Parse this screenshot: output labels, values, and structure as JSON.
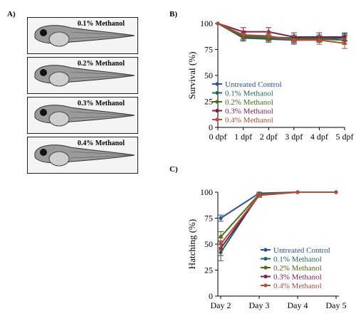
{
  "panels": {
    "a": {
      "label": "A)",
      "images": [
        {
          "caption": "0.1% Methanol"
        },
        {
          "caption": "0.2% Methanol"
        },
        {
          "caption": "0.3% Methanol"
        },
        {
          "caption": "0.4% Methanol"
        }
      ]
    },
    "b": {
      "label": "B)"
    },
    "c": {
      "label": "C)"
    }
  },
  "colors": {
    "Untreated Control": "#2f4f8f",
    "0.1% Methanol": "#1f6b5a",
    "0.2% Methanol": "#4b6b1a",
    "0.3% Methanol": "#7a1f4d",
    "0.4% Methanol": "#b0503a"
  },
  "chart_data": [
    {
      "type": "line",
      "panel": "B",
      "ylabel": "Survival (%)",
      "xlabel": "",
      "x": [
        "0 dpf",
        "1 dpf",
        "2 dpf",
        "3 dpf",
        "4 dpf",
        "5 dpf"
      ],
      "ylim": [
        0,
        100
      ],
      "yticks": [
        0,
        25,
        50,
        75,
        100
      ],
      "legend_position": "bottom-left",
      "series": [
        {
          "name": "Untreated Control",
          "values": [
            100,
            86,
            85,
            84,
            85,
            86
          ],
          "error": [
            0,
            3,
            3,
            3,
            3,
            3
          ]
        },
        {
          "name": "0.1% Methanol",
          "values": [
            100,
            88,
            87,
            86,
            86,
            87
          ],
          "error": [
            0,
            3,
            3,
            3,
            3,
            3
          ]
        },
        {
          "name": "0.2% Methanol",
          "values": [
            100,
            87,
            86,
            85,
            85,
            84
          ],
          "error": [
            0,
            3,
            3,
            3,
            3,
            4
          ]
        },
        {
          "name": "0.3% Methanol",
          "values": [
            100,
            92,
            92,
            87,
            87,
            87
          ],
          "error": [
            0,
            4,
            4,
            4,
            4,
            4
          ]
        },
        {
          "name": "0.4% Methanol",
          "values": [
            100,
            89,
            88,
            84,
            84,
            81
          ],
          "error": [
            0,
            4,
            4,
            4,
            4,
            5
          ]
        }
      ]
    },
    {
      "type": "line",
      "panel": "C",
      "ylabel": "Hatching (%)",
      "xlabel": "",
      "x": [
        "Day 2",
        "Day 3",
        "Day 4",
        "Day 5"
      ],
      "ylim": [
        0,
        100
      ],
      "yticks": [
        0,
        25,
        50,
        75,
        100
      ],
      "legend_position": "bottom-right",
      "series": [
        {
          "name": "Untreated Control",
          "values": [
            75,
            99,
            100,
            100
          ],
          "error": [
            3,
            1,
            0,
            0
          ]
        },
        {
          "name": "0.1% Methanol",
          "values": [
            42,
            98,
            100,
            100
          ],
          "error": [
            8,
            2,
            0,
            0
          ]
        },
        {
          "name": "0.2% Methanol",
          "values": [
            57,
            98,
            100,
            100
          ],
          "error": [
            5,
            2,
            0,
            0
          ]
        },
        {
          "name": "0.3% Methanol",
          "values": [
            46,
            97,
            100,
            100
          ],
          "error": [
            7,
            2,
            0,
            0
          ]
        },
        {
          "name": "0.4% Methanol",
          "values": [
            50,
            97,
            100,
            100
          ],
          "error": [
            6,
            2,
            0,
            0
          ]
        }
      ]
    }
  ]
}
